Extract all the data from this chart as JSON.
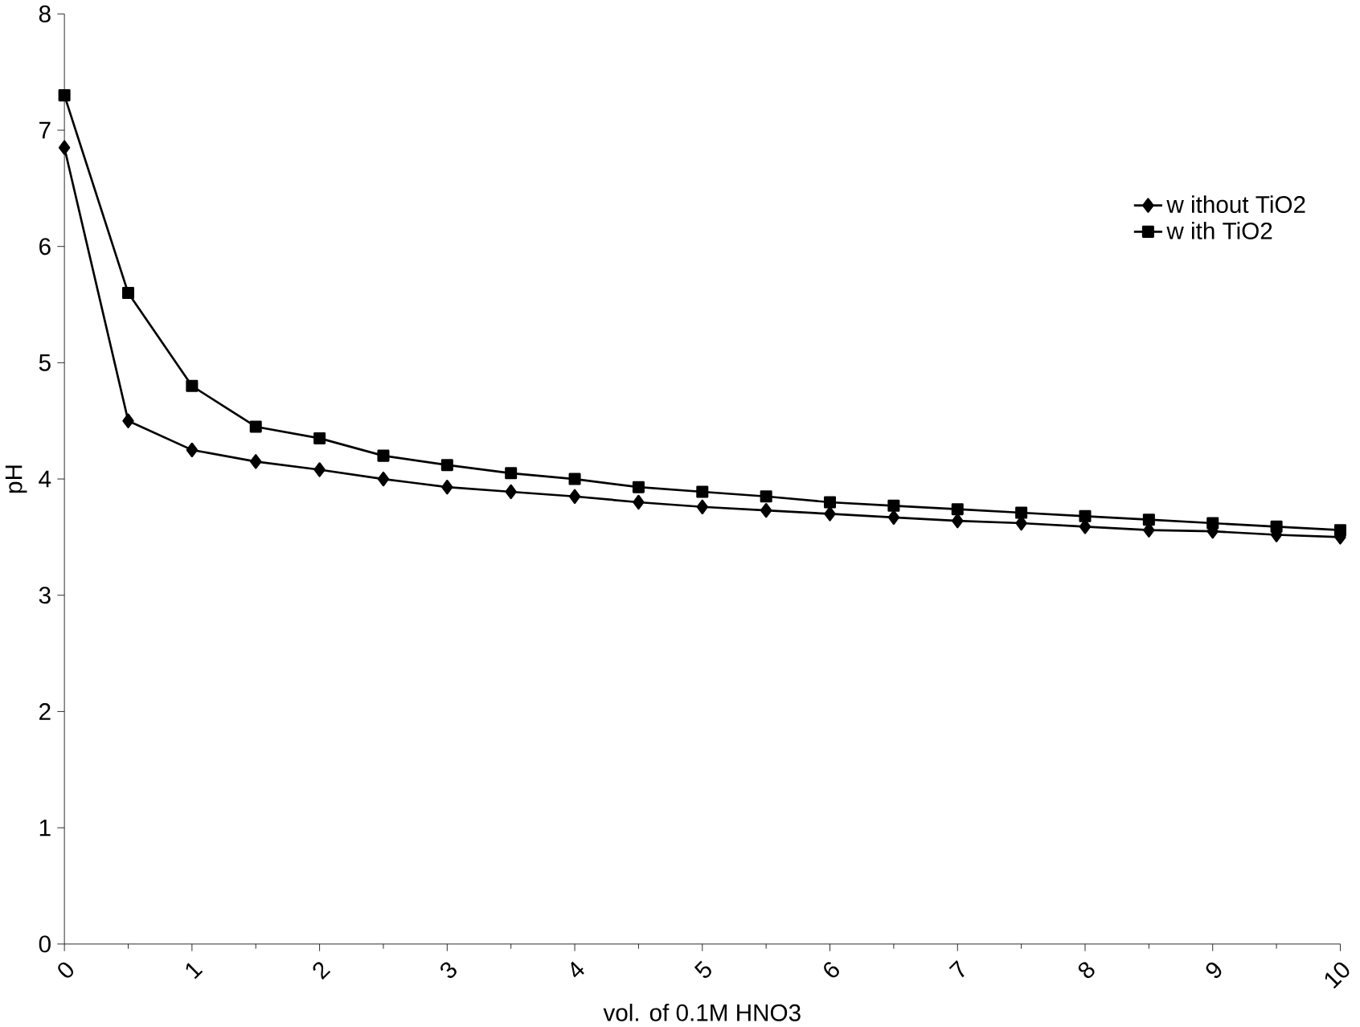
{
  "chart_data": {
    "type": "line",
    "xlabel": "vol. of 0.1M HNO3",
    "ylabel": "pH",
    "x": [
      0,
      0.5,
      1,
      1.5,
      2,
      2.5,
      3,
      3.5,
      4,
      4.5,
      5,
      5.5,
      6,
      6.5,
      7,
      7.5,
      8,
      8.5,
      9,
      9.5,
      10
    ],
    "series": [
      {
        "name": "w ithout TiO2",
        "color": "#000000",
        "marker": "diamond",
        "values": [
          6.85,
          4.5,
          4.25,
          4.15,
          4.08,
          4.0,
          3.93,
          3.89,
          3.85,
          3.8,
          3.76,
          3.73,
          3.7,
          3.67,
          3.64,
          3.62,
          3.59,
          3.56,
          3.55,
          3.52,
          3.5
        ]
      },
      {
        "name": "w ith TiO2",
        "color": "#000000",
        "marker": "square",
        "values": [
          7.3,
          5.6,
          4.8,
          4.45,
          4.35,
          4.2,
          4.12,
          4.05,
          4.0,
          3.93,
          3.89,
          3.85,
          3.8,
          3.77,
          3.74,
          3.71,
          3.68,
          3.65,
          3.62,
          3.59,
          3.56
        ]
      }
    ],
    "xlim": [
      0,
      10
    ],
    "ylim": [
      0,
      8
    ],
    "xticks": [
      0,
      1,
      2,
      3,
      4,
      5,
      6,
      7,
      8,
      9,
      10
    ],
    "yticks": [
      0,
      1,
      2,
      3,
      4,
      5,
      6,
      7,
      8
    ],
    "grid": false,
    "legend": "right",
    "line_style": "solid"
  }
}
